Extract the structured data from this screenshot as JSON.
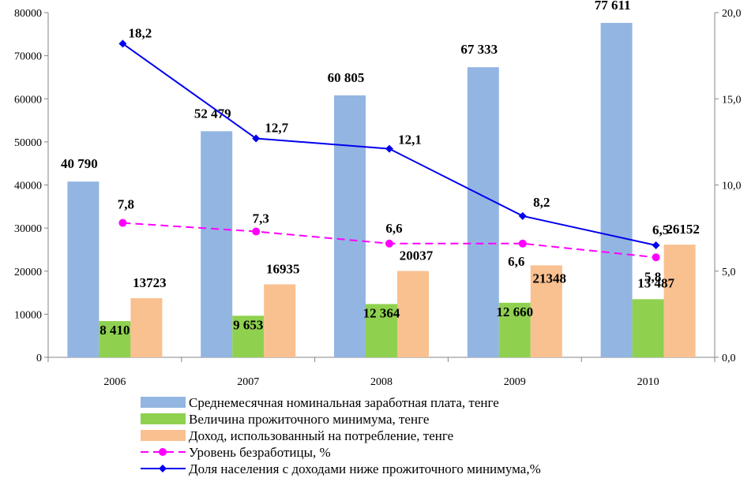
{
  "chart_data": {
    "type": "bar",
    "categories": [
      "2006",
      "2007",
      "2008",
      "2009",
      "2010"
    ],
    "y_left": {
      "min": 0,
      "max": 80000,
      "step": 10000,
      "ticks": [
        "0",
        "10000",
        "20000",
        "30000",
        "40000",
        "50000",
        "60000",
        "70000",
        "80000"
      ]
    },
    "y_right": {
      "min": 0,
      "max": 20,
      "step": 5,
      "ticks": [
        "0,0",
        "5,0",
        "10,0",
        "15,0",
        "20,0"
      ]
    },
    "grid": false,
    "legend_position": "bottom",
    "bar_series": [
      {
        "name": "Среднемесячная номинальная заработная плата, тенге",
        "color": "#93b5e2",
        "values": [
          40790,
          52479,
          60805,
          67333,
          77611
        ],
        "labels": [
          "40 790",
          "52 479",
          "60 805",
          "67 333",
          "77 611"
        ]
      },
      {
        "name": "Величина прожиточного минимума, тенге",
        "color": "#8fd14f",
        "values": [
          8410,
          9653,
          12364,
          12660,
          13487
        ],
        "labels": [
          "8 410",
          "9 653",
          "12 364",
          "12 660",
          "13 487"
        ]
      },
      {
        "name": "Доход, использованный на потребление, тенге",
        "color": "#f9c090",
        "values": [
          13723,
          16935,
          20037,
          21348,
          26152
        ],
        "labels": [
          "13723",
          "16935",
          "20037",
          "21348",
          "26152"
        ]
      }
    ],
    "line_series": [
      {
        "name": "Уровень безработицы, %",
        "color": "#ff00ff",
        "style": "dashed",
        "marker": "circle",
        "axis": "right",
        "values": [
          7.8,
          7.3,
          6.6,
          6.6,
          5.8
        ],
        "labels": [
          "7,8",
          "7,3",
          "6,6",
          "6,6",
          "5,8"
        ]
      },
      {
        "name": "Доля населения с доходами ниже прожиточного минимума,%",
        "color": "#0000ee",
        "style": "solid",
        "marker": "diamond",
        "axis": "right",
        "values": [
          18.2,
          12.7,
          12.1,
          8.2,
          6.5
        ],
        "labels": [
          "18,2",
          "12,7",
          "12,1",
          "8,2",
          "6,5"
        ]
      }
    ]
  }
}
